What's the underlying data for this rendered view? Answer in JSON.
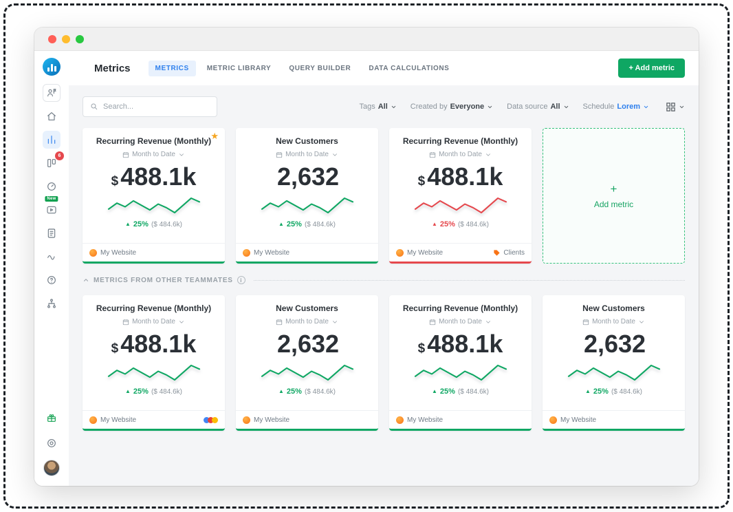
{
  "colors": {
    "green": "#0fa763",
    "red": "#e5484d",
    "blue": "#2f80ed",
    "orange": "#f97316",
    "star_orange": "#f5a623"
  },
  "icons": {
    "star": "★",
    "triangle_up": "▲",
    "plus": "+",
    "info": "i",
    "question": "?"
  },
  "header": {
    "title": "Metrics",
    "tabs": [
      {
        "label": "METRICS"
      },
      {
        "label": "METRIC LIBRARY"
      },
      {
        "label": "QUERY BUILDER"
      },
      {
        "label": "DATA CALCULATIONS"
      }
    ],
    "add_metric": "+ Add metric"
  },
  "sidebar": {
    "badges": {
      "databoards": "6",
      "new": "New"
    }
  },
  "filters": {
    "search_placeholder": "Search...",
    "items": [
      {
        "label": "Tags",
        "value": "All"
      },
      {
        "label": "Created by",
        "value": "Everyone"
      },
      {
        "label": "Data source",
        "value": "All"
      },
      {
        "label": "Schedule",
        "value": "Lorem"
      }
    ]
  },
  "sections": {
    "teammates_label": "METRICS FROM OTHER TEAMMATES"
  },
  "add_metric_card": {
    "label": "Add metric"
  },
  "sparkline_points": [
    42,
    55,
    47,
    60,
    50,
    40,
    53,
    45,
    34,
    50,
    66,
    58
  ],
  "cards": {
    "row1": [
      {
        "title": "Recurring Revenue (Monthly)",
        "period": "Month to Date",
        "prefix": "$",
        "value": "488.1k",
        "delta": "25%",
        "delta_note": "($ 484.6k)",
        "source": "My Website",
        "trend": "up",
        "starred": true
      },
      {
        "title": "New Customers",
        "period": "Month to Date",
        "prefix": "",
        "value": "2,632",
        "delta": "25%",
        "delta_note": "($ 484.6k)",
        "source": "My Website",
        "trend": "up"
      },
      {
        "title": "Recurring Revenue (Monthly)",
        "period": "Month to Date",
        "prefix": "$",
        "value": "488.1k",
        "delta": "25%",
        "delta_note": "($ 484.6k)",
        "source": "My Website",
        "tag": "Clients",
        "trend": "down"
      }
    ],
    "row2": [
      {
        "title": "Recurring Revenue (Monthly)",
        "period": "Month to Date",
        "prefix": "$",
        "value": "488.1k",
        "delta": "25%",
        "delta_note": "($ 484.6k)",
        "source": "My Website",
        "trend": "up",
        "integrations": [
          "#4285F4",
          "#EA4335",
          "#FBBC05"
        ]
      },
      {
        "title": "New Customers",
        "period": "Month to Date",
        "prefix": "",
        "value": "2,632",
        "delta": "25%",
        "delta_note": "($ 484.6k)",
        "source": "My Website",
        "trend": "up"
      },
      {
        "title": "Recurring Revenue (Monthly)",
        "period": "Month to Date",
        "prefix": "$",
        "value": "488.1k",
        "delta": "25%",
        "delta_note": "($ 484.6k)",
        "source": "My Website",
        "trend": "up"
      },
      {
        "title": "New Customers",
        "period": "Month to Date",
        "prefix": "",
        "value": "2,632",
        "delta": "25%",
        "delta_note": "($ 484.6k)",
        "source": "My Website",
        "trend": "up"
      }
    ]
  }
}
